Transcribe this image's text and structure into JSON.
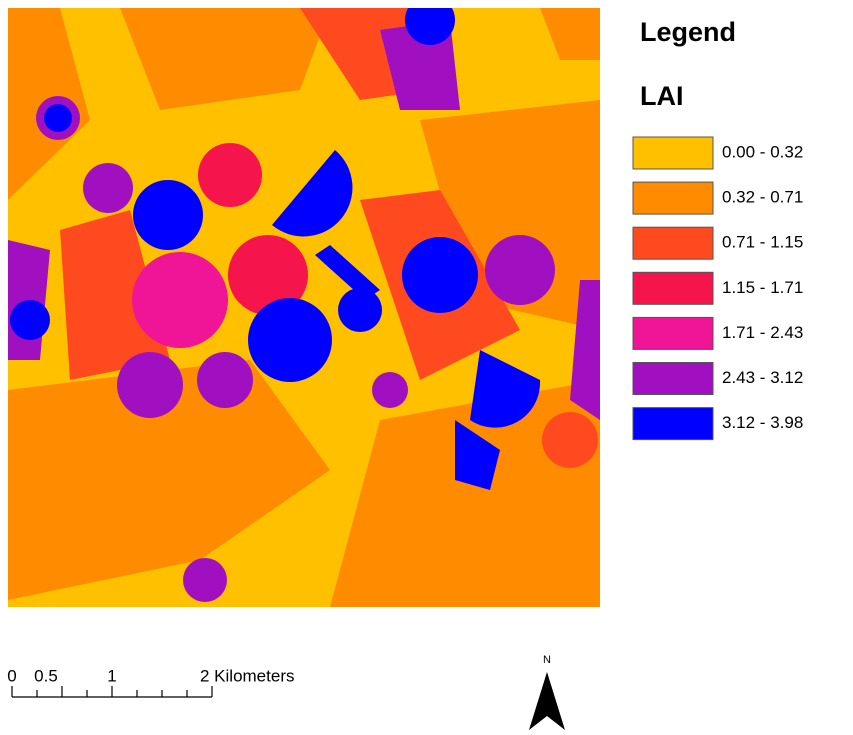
{
  "legend": {
    "title": "Legend",
    "subtitle": "LAI",
    "items": [
      {
        "label": "0.00 - 0.32",
        "color": "#ffc000"
      },
      {
        "label": "0.32 - 0.71",
        "color": "#ff8c00"
      },
      {
        "label": "0.71 - 1.15",
        "color": "#ff4a20"
      },
      {
        "label": "1.15 - 1.71",
        "color": "#f5144b"
      },
      {
        "label": "1.71 - 2.43",
        "color": "#f01496"
      },
      {
        "label": "2.43 - 3.12",
        "color": "#a010c0"
      },
      {
        "label": "3.12 - 3.98",
        "color": "#0000ff"
      }
    ]
  },
  "scale_bar": {
    "labels": [
      "0",
      "0.5",
      "1",
      "2 Kilometers"
    ]
  },
  "north_arrow": {
    "label": "N"
  }
}
